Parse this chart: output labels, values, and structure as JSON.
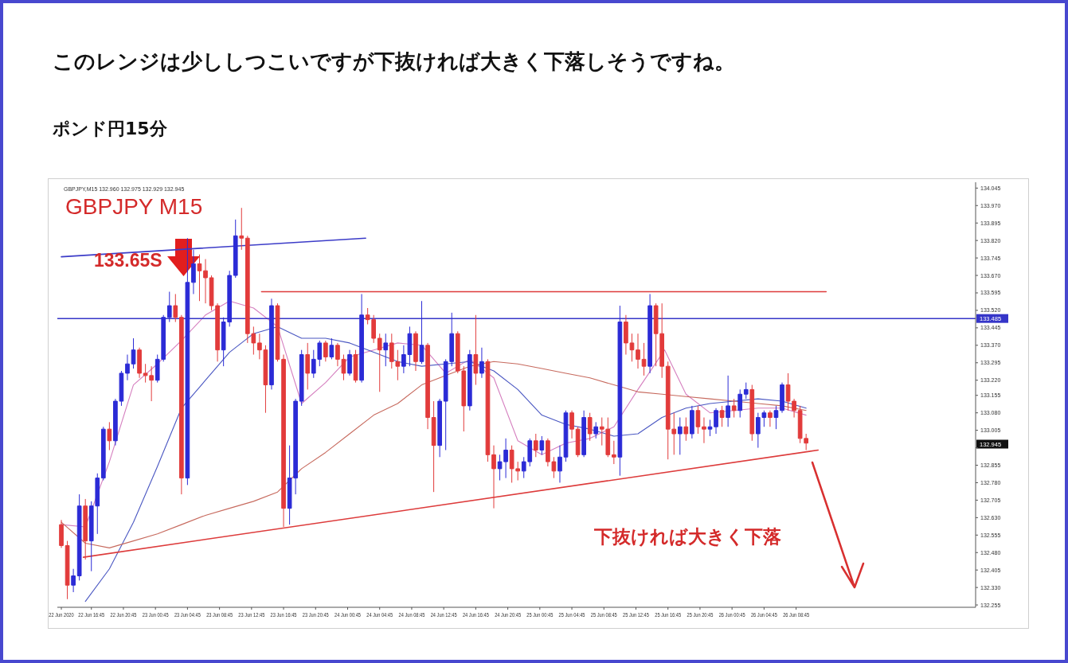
{
  "chart_data": {
    "type": "candlestick",
    "title": "このレンジは少ししつこいですが下抜ければ大きく下落しそうですね。",
    "subtitle": "ポンド円15分",
    "x": [
      "2020-06-22T13:00",
      "2020-06-22T13:45",
      "2020-06-22T14:30",
      "2020-06-22T15:15",
      "2020-06-22T16:00",
      "2020-06-22T16:45",
      "2020-06-22T17:30",
      "2020-06-22T18:15",
      "2020-06-22T19:00",
      "2020-06-22T19:45",
      "2020-06-22T20:30",
      "2020-06-22T21:15",
      "2020-06-22T22:00",
      "2020-06-22T22:45",
      "2020-06-22T23:30",
      "2020-06-23T00:15",
      "2020-06-23T01:00",
      "2020-06-23T01:45",
      "2020-06-23T02:30",
      "2020-06-23T03:15",
      "2020-06-23T04:00",
      "2020-06-23T04:45",
      "2020-06-23T05:30",
      "2020-06-23T06:15",
      "2020-06-23T07:00",
      "2020-06-23T07:45",
      "2020-06-23T08:30",
      "2020-06-23T09:15",
      "2020-06-23T10:00",
      "2020-06-23T10:45",
      "2020-06-23T11:30",
      "2020-06-23T12:15",
      "2020-06-23T13:00",
      "2020-06-23T13:45",
      "2020-06-23T14:30",
      "2020-06-23T15:15",
      "2020-06-23T16:00",
      "2020-06-23T16:45",
      "2020-06-23T17:30",
      "2020-06-23T18:15",
      "2020-06-23T19:00",
      "2020-06-23T19:45",
      "2020-06-23T20:30",
      "2020-06-23T21:15",
      "2020-06-23T22:00",
      "2020-06-23T22:45",
      "2020-06-23T23:30",
      "2020-06-24T00:15",
      "2020-06-24T01:00",
      "2020-06-24T01:45",
      "2020-06-24T02:30",
      "2020-06-24T03:15",
      "2020-06-24T04:00",
      "2020-06-24T04:45",
      "2020-06-24T05:30",
      "2020-06-24T06:15",
      "2020-06-24T07:00",
      "2020-06-24T07:45",
      "2020-06-24T08:30",
      "2020-06-24T09:15",
      "2020-06-24T10:00",
      "2020-06-24T10:45",
      "2020-06-24T11:30",
      "2020-06-24T12:15",
      "2020-06-24T13:00",
      "2020-06-24T13:45",
      "2020-06-24T14:30",
      "2020-06-24T15:15",
      "2020-06-24T16:00",
      "2020-06-24T16:45",
      "2020-06-24T17:30",
      "2020-06-24T18:15",
      "2020-06-24T19:00",
      "2020-06-24T19:45",
      "2020-06-24T20:30",
      "2020-06-24T21:15",
      "2020-06-24T22:00",
      "2020-06-24T22:45",
      "2020-06-24T23:30",
      "2020-06-25T00:15",
      "2020-06-25T01:00",
      "2020-06-25T01:45",
      "2020-06-25T02:30",
      "2020-06-25T03:15",
      "2020-06-25T04:00",
      "2020-06-25T04:45",
      "2020-06-25T05:30",
      "2020-06-25T06:15",
      "2020-06-25T07:00",
      "2020-06-25T07:45",
      "2020-06-25T08:30",
      "2020-06-25T09:15",
      "2020-06-25T10:00",
      "2020-06-25T10:45",
      "2020-06-25T11:30",
      "2020-06-25T12:15",
      "2020-06-25T13:00",
      "2020-06-25T13:45",
      "2020-06-25T14:30",
      "2020-06-25T15:15",
      "2020-06-25T16:00",
      "2020-06-25T16:45",
      "2020-06-25T17:30",
      "2020-06-25T18:15",
      "2020-06-25T19:00",
      "2020-06-25T19:45",
      "2020-06-25T20:30",
      "2020-06-25T21:15",
      "2020-06-25T22:00",
      "2020-06-25T22:45",
      "2020-06-25T23:30",
      "2020-06-26T00:15",
      "2020-06-26T01:00",
      "2020-06-26T01:45",
      "2020-06-26T02:30",
      "2020-06-26T03:15",
      "2020-06-26T04:00",
      "2020-06-26T04:45",
      "2020-06-26T05:30",
      "2020-06-26T06:15",
      "2020-06-26T07:00",
      "2020-06-26T07:45",
      "2020-06-26T08:30",
      "2020-06-26T09:15",
      "2020-06-26T10:00"
    ],
    "ohlc": [
      [
        132.6,
        132.62,
        132.5,
        132.51
      ],
      [
        132.51,
        132.53,
        132.28,
        132.34
      ],
      [
        132.34,
        132.41,
        132.31,
        132.38
      ],
      [
        132.38,
        132.73,
        132.36,
        132.68
      ],
      [
        132.68,
        132.71,
        132.45,
        132.53
      ],
      [
        132.53,
        132.7,
        132.4,
        132.68
      ],
      [
        132.68,
        132.82,
        132.56,
        132.8
      ],
      [
        132.8,
        133.02,
        132.79,
        133.01
      ],
      [
        133.01,
        133.04,
        132.92,
        132.96
      ],
      [
        132.96,
        133.14,
        132.94,
        133.13
      ],
      [
        133.13,
        133.26,
        133.11,
        133.25
      ],
      [
        133.25,
        133.33,
        133.22,
        133.29
      ],
      [
        133.29,
        133.4,
        133.27,
        133.35
      ],
      [
        133.35,
        133.36,
        133.23,
        133.25
      ],
      [
        133.25,
        133.29,
        133.21,
        133.24
      ],
      [
        133.24,
        133.28,
        133.13,
        133.22
      ],
      [
        133.22,
        133.33,
        133.21,
        133.31
      ],
      [
        133.31,
        133.5,
        133.3,
        133.49
      ],
      [
        133.49,
        133.6,
        133.47,
        133.54
      ],
      [
        133.54,
        133.59,
        133.47,
        133.49
      ],
      [
        133.49,
        133.5,
        132.73,
        132.8
      ],
      [
        132.8,
        133.83,
        132.77,
        133.64
      ],
      [
        133.64,
        133.78,
        133.59,
        133.72
      ],
      [
        133.72,
        133.76,
        133.56,
        133.69
      ],
      [
        133.69,
        133.74,
        133.55,
        133.66
      ],
      [
        133.66,
        133.67,
        133.52,
        133.54
      ],
      [
        133.54,
        133.55,
        133.3,
        133.35
      ],
      [
        133.35,
        133.49,
        133.28,
        133.47
      ],
      [
        133.47,
        133.69,
        133.45,
        133.67
      ],
      [
        133.67,
        133.91,
        133.66,
        133.84
      ],
      [
        133.84,
        133.96,
        133.78,
        133.83
      ],
      [
        133.83,
        133.84,
        133.38,
        133.42
      ],
      [
        133.42,
        133.45,
        133.33,
        133.38
      ],
      [
        133.38,
        133.42,
        133.31,
        133.35
      ],
      [
        133.35,
        133.37,
        133.08,
        133.2
      ],
      [
        133.2,
        133.57,
        133.18,
        133.54
      ],
      [
        133.54,
        133.55,
        133.3,
        133.31
      ],
      [
        133.31,
        133.33,
        132.59,
        132.67
      ],
      [
        132.67,
        132.94,
        132.6,
        132.8
      ],
      [
        132.8,
        133.14,
        132.73,
        133.13
      ],
      [
        133.13,
        133.35,
        133.11,
        133.33
      ],
      [
        133.33,
        133.38,
        133.18,
        133.25
      ],
      [
        133.25,
        133.35,
        133.23,
        133.31
      ],
      [
        133.31,
        133.39,
        133.28,
        133.38
      ],
      [
        133.38,
        133.39,
        133.3,
        133.32
      ],
      [
        133.32,
        133.4,
        133.31,
        133.37
      ],
      [
        133.37,
        133.38,
        133.28,
        133.31
      ],
      [
        133.31,
        133.33,
        133.22,
        133.25
      ],
      [
        133.25,
        133.35,
        133.24,
        133.33
      ],
      [
        133.33,
        133.35,
        133.21,
        133.22
      ],
      [
        133.22,
        133.59,
        133.21,
        133.5
      ],
      [
        133.5,
        133.53,
        133.46,
        133.48
      ],
      [
        133.48,
        133.5,
        133.38,
        133.4
      ],
      [
        133.4,
        133.42,
        133.17,
        133.35
      ],
      [
        133.35,
        133.42,
        133.28,
        133.38
      ],
      [
        133.38,
        133.42,
        133.27,
        133.3
      ],
      [
        133.3,
        133.35,
        133.22,
        133.28
      ],
      [
        133.28,
        133.37,
        133.25,
        133.33
      ],
      [
        133.33,
        133.45,
        133.28,
        133.42
      ],
      [
        133.42,
        133.43,
        133.26,
        133.3
      ],
      [
        133.3,
        133.56,
        133.29,
        133.37
      ],
      [
        133.37,
        133.38,
        133.01,
        133.06
      ],
      [
        133.06,
        133.13,
        132.74,
        132.94
      ],
      [
        132.94,
        133.14,
        132.89,
        133.13
      ],
      [
        133.13,
        133.31,
        132.92,
        133.3
      ],
      [
        133.3,
        133.51,
        133.28,
        133.42
      ],
      [
        133.42,
        133.43,
        133.25,
        133.26
      ],
      [
        133.26,
        133.28,
        133.0,
        133.11
      ],
      [
        133.11,
        133.35,
        133.09,
        133.33
      ],
      [
        133.33,
        133.5,
        133.2,
        133.25
      ],
      [
        133.25,
        133.36,
        133.23,
        133.3
      ],
      [
        133.3,
        133.31,
        132.87,
        132.9
      ],
      [
        132.9,
        132.94,
        132.67,
        132.84
      ],
      [
        132.84,
        132.9,
        132.79,
        132.87
      ],
      [
        132.87,
        132.97,
        132.8,
        132.92
      ],
      [
        132.92,
        132.94,
        132.78,
        132.84
      ],
      [
        132.84,
        132.87,
        132.79,
        132.83
      ],
      [
        132.83,
        132.89,
        132.8,
        132.87
      ],
      [
        132.87,
        132.97,
        132.85,
        132.96
      ],
      [
        132.96,
        132.99,
        132.89,
        132.92
      ],
      [
        132.92,
        132.98,
        132.9,
        132.96
      ],
      [
        132.96,
        132.97,
        132.85,
        132.87
      ],
      [
        132.87,
        132.89,
        132.8,
        132.83
      ],
      [
        132.83,
        132.94,
        132.78,
        132.89
      ],
      [
        132.89,
        133.09,
        132.87,
        133.08
      ],
      [
        133.08,
        133.09,
        132.97,
        133.01
      ],
      [
        133.01,
        133.02,
        132.89,
        132.9
      ],
      [
        132.9,
        133.09,
        132.89,
        133.06
      ],
      [
        133.06,
        133.08,
        132.96,
        132.99
      ],
      [
        132.99,
        133.04,
        132.97,
        133.02
      ],
      [
        133.02,
        133.06,
        132.94,
        133.01
      ],
      [
        133.01,
        133.06,
        132.89,
        132.9
      ],
      [
        132.9,
        132.96,
        132.86,
        132.89
      ],
      [
        132.89,
        133.54,
        132.81,
        133.47
      ],
      [
        133.47,
        133.5,
        133.33,
        133.38
      ],
      [
        133.38,
        133.42,
        133.3,
        133.35
      ],
      [
        133.35,
        133.42,
        133.27,
        133.31
      ],
      [
        133.31,
        133.38,
        133.24,
        133.28
      ],
      [
        133.28,
        133.59,
        133.25,
        133.54
      ],
      [
        133.54,
        133.55,
        133.28,
        133.42
      ],
      [
        133.42,
        133.55,
        133.23,
        133.28
      ],
      [
        133.28,
        133.3,
        132.88,
        133.01
      ],
      [
        133.01,
        133.08,
        132.9,
        132.99
      ],
      [
        132.99,
        133.06,
        132.9,
        133.02
      ],
      [
        133.02,
        133.06,
        132.96,
        132.99
      ],
      [
        132.99,
        133.11,
        132.97,
        133.09
      ],
      [
        133.09,
        133.11,
        132.99,
        133.02
      ],
      [
        133.02,
        133.06,
        132.95,
        133.01
      ],
      [
        133.01,
        133.05,
        132.98,
        133.02
      ],
      [
        133.02,
        133.1,
        132.99,
        133.09
      ],
      [
        133.09,
        133.11,
        133.02,
        133.06
      ],
      [
        133.06,
        133.24,
        133.02,
        133.11
      ],
      [
        133.11,
        133.14,
        133.06,
        133.09
      ],
      [
        133.09,
        133.18,
        133.06,
        133.16
      ],
      [
        133.16,
        133.21,
        133.14,
        133.18
      ],
      [
        133.18,
        133.2,
        132.96,
        132.99
      ],
      [
        132.99,
        133.08,
        132.93,
        133.06
      ],
      [
        133.06,
        133.09,
        133.02,
        133.08
      ],
      [
        133.08,
        133.09,
        133.02,
        133.06
      ],
      [
        133.06,
        133.11,
        133.01,
        133.09
      ],
      [
        133.09,
        133.21,
        133.08,
        133.2
      ],
      [
        133.2,
        133.25,
        133.09,
        133.13
      ],
      [
        133.13,
        133.14,
        133.06,
        133.09
      ],
      [
        133.09,
        133.11,
        132.95,
        132.97
      ],
      [
        132.97,
        132.99,
        132.92,
        132.95
      ]
    ],
    "colors": [
      "#e23b3b",
      "#e23b3b",
      "#2b2bd6",
      "#2b2bd6",
      "#e23b3b",
      "#2b2bd6",
      "#2b2bd6",
      "#2b2bd6",
      "#e23b3b",
      "#2b2bd6",
      "#2b2bd6",
      "#2b2bd6",
      "#2b2bd6",
      "#e23b3b",
      "#e23b3b",
      "#e23b3b",
      "#2b2bd6",
      "#2b2bd6",
      "#2b2bd6",
      "#e23b3b",
      "#e23b3b",
      "#2b2bd6",
      "#2b2bd6",
      "#e23b3b",
      "#e23b3b",
      "#e23b3b",
      "#e23b3b",
      "#2b2bd6",
      "#2b2bd6",
      "#2b2bd6",
      "#e23b3b",
      "#e23b3b",
      "#e23b3b",
      "#e23b3b",
      "#e23b3b",
      "#2b2bd6",
      "#e23b3b",
      "#e23b3b",
      "#2b2bd6",
      "#2b2bd6",
      "#2b2bd6",
      "#e23b3b",
      "#2b2bd6",
      "#2b2bd6",
      "#e23b3b",
      "#2b2bd6",
      "#e23b3b",
      "#e23b3b",
      "#2b2bd6",
      "#e23b3b",
      "#2b2bd6",
      "#e23b3b",
      "#e23b3b",
      "#e23b3b",
      "#2b2bd6",
      "#e23b3b",
      "#e23b3b",
      "#2b2bd6",
      "#2b2bd6",
      "#e23b3b",
      "#2b2bd6",
      "#e23b3b",
      "#e23b3b",
      "#2b2bd6",
      "#2b2bd6",
      "#2b2bd6",
      "#e23b3b",
      "#e23b3b",
      "#2b2bd6",
      "#e23b3b",
      "#2b2bd6",
      "#e23b3b",
      "#e23b3b",
      "#2b2bd6",
      "#2b2bd6",
      "#e23b3b",
      "#e23b3b",
      "#2b2bd6",
      "#2b2bd6",
      "#e23b3b",
      "#2b2bd6",
      "#e23b3b",
      "#e23b3b",
      "#2b2bd6",
      "#2b2bd6",
      "#e23b3b",
      "#e23b3b",
      "#2b2bd6",
      "#e23b3b",
      "#2b2bd6",
      "#e23b3b",
      "#e23b3b",
      "#e23b3b",
      "#2b2bd6",
      "#e23b3b",
      "#e23b3b",
      "#e23b3b",
      "#e23b3b",
      "#2b2bd6",
      "#e23b3b",
      "#e23b3b",
      "#e23b3b",
      "#e23b3b",
      "#2b2bd6",
      "#e23b3b",
      "#2b2bd6",
      "#e23b3b",
      "#e23b3b",
      "#2b2bd6",
      "#2b2bd6",
      "#e23b3b",
      "#2b2bd6",
      "#e23b3b",
      "#2b2bd6",
      "#2b2bd6",
      "#e23b3b",
      "#2b2bd6",
      "#2b2bd6",
      "#e23b3b",
      "#2b2bd6",
      "#2b2bd6",
      "#e23b3b",
      "#e23b3b",
      "#e23b3b",
      "#e23b3b"
    ],
    "series": [
      {
        "type": "line",
        "color": "#d57fbf",
        "x": [
          "2020-06-22T13:00",
          "2020-06-22T16:00",
          "2020-06-22T19:00",
          "2020-06-22T22:00",
          "2020-06-23T01:00",
          "2020-06-23T04:00",
          "2020-06-23T07:00",
          "2020-06-23T10:00",
          "2020-06-23T13:00",
          "2020-06-23T16:00",
          "2020-06-23T19:00",
          "2020-06-23T22:00",
          "2020-06-24T01:00",
          "2020-06-24T04:00",
          "2020-06-24T07:00",
          "2020-06-24T10:00",
          "2020-06-24T13:00",
          "2020-06-24T16:00",
          "2020-06-24T19:00",
          "2020-06-24T22:00",
          "2020-06-25T01:00",
          "2020-06-25T04:00",
          "2020-06-25T07:00",
          "2020-06-25T10:00",
          "2020-06-25T13:00",
          "2020-06-25T16:20",
          "2020-06-25T19:00",
          "2020-06-25T22:00",
          "2020-06-26T01:00",
          "2020-06-26T04:00",
          "2020-06-26T07:00",
          "2020-06-26T10:00"
        ],
        "values": [
          132.6,
          132.59,
          132.87,
          133.2,
          133.29,
          133.39,
          133.5,
          133.56,
          133.53,
          133.45,
          133.12,
          133.21,
          133.32,
          133.35,
          133.38,
          133.37,
          133.25,
          133.31,
          133.23,
          132.96,
          132.9,
          132.95,
          132.97,
          133.02,
          133.18,
          133.35,
          133.16,
          133.08,
          133.09,
          133.1,
          133.1,
          133.07
        ]
      },
      {
        "type": "line",
        "color": "#4a57c2",
        "x": [
          "2020-06-22T16:00",
          "2020-06-22T19:00",
          "2020-06-22T22:00",
          "2020-06-23T01:00",
          "2020-06-23T04:00",
          "2020-06-23T07:00",
          "2020-06-23T10:00",
          "2020-06-23T13:00",
          "2020-06-23T16:00",
          "2020-06-23T19:00",
          "2020-06-23T22:00",
          "2020-06-24T01:00",
          "2020-06-24T04:00",
          "2020-06-24T07:00",
          "2020-06-24T10:00",
          "2020-06-24T13:00",
          "2020-06-24T16:00",
          "2020-06-24T19:00",
          "2020-06-24T22:00",
          "2020-06-25T01:00",
          "2020-06-25T04:00",
          "2020-06-25T07:00",
          "2020-06-25T10:00",
          "2020-06-25T13:00",
          "2020-06-25T16:00",
          "2020-06-25T19:00",
          "2020-06-25T22:00",
          "2020-06-26T01:00",
          "2020-06-26T04:00",
          "2020-06-26T07:00",
          "2020-06-26T10:00"
        ],
        "values": [
          132.27,
          132.41,
          132.61,
          132.85,
          133.1,
          133.22,
          133.34,
          133.42,
          133.45,
          133.4,
          133.4,
          133.38,
          133.34,
          133.3,
          133.28,
          133.29,
          133.3,
          133.26,
          133.18,
          133.07,
          133.03,
          133.01,
          132.98,
          132.99,
          133.06,
          133.1,
          133.12,
          133.13,
          133.14,
          133.13,
          133.1
        ]
      },
      {
        "type": "line",
        "color": "#c76a5e",
        "x": [
          "2020-06-22T13:00",
          "2020-06-22T16:00",
          "2020-06-22T19:00",
          "2020-06-22T22:00",
          "2020-06-23T01:00",
          "2020-06-23T04:00",
          "2020-06-23T07:00",
          "2020-06-23T10:00",
          "2020-06-23T13:00",
          "2020-06-23T16:00",
          "2020-06-23T19:00",
          "2020-06-23T22:00",
          "2020-06-24T01:00",
          "2020-06-24T04:00",
          "2020-06-24T07:00",
          "2020-06-24T10:00",
          "2020-06-24T13:00",
          "2020-06-24T16:00",
          "2020-06-24T19:00",
          "2020-06-24T22:00",
          "2020-06-25T01:00",
          "2020-06-25T04:00",
          "2020-06-25T07:00",
          "2020-06-25T10:00",
          "2020-06-25T13:00",
          "2020-06-25T16:00",
          "2020-06-25T19:00",
          "2020-06-25T22:00",
          "2020-06-26T01:00",
          "2020-06-26T04:00",
          "2020-06-26T07:00",
          "2020-06-26T10:00"
        ],
        "values": [
          132.61,
          132.52,
          132.5,
          132.53,
          132.56,
          132.6,
          132.64,
          132.67,
          132.7,
          132.74,
          132.84,
          132.91,
          132.99,
          133.07,
          133.12,
          133.2,
          133.24,
          133.28,
          133.3,
          133.29,
          133.27,
          133.25,
          133.23,
          133.2,
          133.17,
          133.16,
          133.15,
          133.14,
          133.13,
          133.12,
          133.11,
          133.09
        ]
      },
      {
        "type": "line",
        "color": "#3c3cc8",
        "x": [
          "2020-06-22T13:00",
          "2020-06-24T03:00"
        ],
        "values": [
          133.75,
          133.83
        ]
      },
      {
        "type": "line",
        "color": "#dd3b3b",
        "x": [
          "2020-06-23T14:00",
          "2020-06-26T12:30"
        ],
        "values": [
          133.6,
          133.6
        ]
      },
      {
        "type": "line",
        "color": "#dd3b3b",
        "x": [
          "2020-06-22T15:45",
          "2020-06-26T11:30"
        ],
        "values": [
          132.46,
          132.92
        ]
      }
    ],
    "ref_lines": [
      {
        "axis": "y",
        "value": 133.485,
        "label": "133.485",
        "color": "#3535c8"
      }
    ],
    "annotations": [
      "GBPJPY,M15 132.960 132.975 132.929 132.945",
      "GBPJPY M15",
      "133.65S",
      "下抜ければ大きく下落",
      "132.945"
    ],
    "xlim": [
      "2020-06-22T12:30",
      "2020-06-27T07:10"
    ],
    "ylim": [
      132.245,
      134.07
    ],
    "xticks": [
      {
        "value": "2020-06-22T13:00",
        "label": "22 Jun 2020"
      },
      {
        "value": "2020-06-22T16:45",
        "label": "22 Jun 16:45"
      },
      {
        "value": "2020-06-22T20:45",
        "label": "22 Jun 20:45"
      },
      {
        "value": "2020-06-23T00:45",
        "label": "23 Jun 00:45"
      },
      {
        "value": "2020-06-23T04:45",
        "label": "23 Jun 04:45"
      },
      {
        "value": "2020-06-23T08:45",
        "label": "23 Jun 08:45"
      },
      {
        "value": "2020-06-23T12:45",
        "label": "23 Jun 12:45"
      },
      {
        "value": "2020-06-23T16:45",
        "label": "23 Jun 16:45"
      },
      {
        "value": "2020-06-23T20:45",
        "label": "23 Jun 20:45"
      },
      {
        "value": "2020-06-24T00:45",
        "label": "24 Jun 00:45"
      },
      {
        "value": "2020-06-24T04:45",
        "label": "24 Jun 04:45"
      },
      {
        "value": "2020-06-24T08:45",
        "label": "24 Jun 08:45"
      },
      {
        "value": "2020-06-24T12:45",
        "label": "24 Jun 12:45"
      },
      {
        "value": "2020-06-24T16:45",
        "label": "24 Jun 16:45"
      },
      {
        "value": "2020-06-24T20:45",
        "label": "24 Jun 20:45"
      },
      {
        "value": "2020-06-25T00:45",
        "label": "25 Jun 00:45"
      },
      {
        "value": "2020-06-25T04:45",
        "label": "25 Jun 04:45"
      },
      {
        "value": "2020-06-25T08:45",
        "label": "25 Jun 08:45"
      },
      {
        "value": "2020-06-25T12:45",
        "label": "25 Jun 12:45"
      },
      {
        "value": "2020-06-25T16:45",
        "label": "25 Jun 16:45"
      },
      {
        "value": "2020-06-25T20:45",
        "label": "25 Jun 20:45"
      },
      {
        "value": "2020-06-26T00:45",
        "label": "26 Jun 00:45"
      },
      {
        "value": "2020-06-26T04:45",
        "label": "26 Jun 04:45"
      },
      {
        "value": "2020-06-26T08:45",
        "label": "26 Jun 08:45"
      }
    ],
    "yticks": [
      {
        "value": 134.045,
        "label": "134.045"
      },
      {
        "value": 133.97,
        "label": "133.970"
      },
      {
        "value": 133.895,
        "label": "133.895"
      },
      {
        "value": 133.82,
        "label": "133.820"
      },
      {
        "value": 133.745,
        "label": "133.745"
      },
      {
        "value": 133.67,
        "label": "133.670"
      },
      {
        "value": 133.595,
        "label": "133.595"
      },
      {
        "value": 133.52,
        "label": "133.520"
      },
      {
        "value": 133.445,
        "label": "133.445"
      },
      {
        "value": 133.37,
        "label": "133.370"
      },
      {
        "value": 133.295,
        "label": "133.295"
      },
      {
        "value": 133.22,
        "label": "133.220"
      },
      {
        "value": 133.155,
        "label": "133.155"
      },
      {
        "value": 133.08,
        "label": "133.080"
      },
      {
        "value": 133.005,
        "label": "133.005"
      },
      {
        "value": 132.93,
        "label": null
      },
      {
        "value": 132.855,
        "label": "132.855"
      },
      {
        "value": 132.78,
        "label": "132.780"
      },
      {
        "value": 132.705,
        "label": "132.705"
      },
      {
        "value": 132.63,
        "label": "132.630"
      },
      {
        "value": 132.555,
        "label": "132.555"
      },
      {
        "value": 132.48,
        "label": "132.480"
      },
      {
        "value": 132.405,
        "label": "132.405"
      },
      {
        "value": 132.33,
        "label": "132.330"
      },
      {
        "value": 132.255,
        "label": "132.255"
      }
    ]
  }
}
